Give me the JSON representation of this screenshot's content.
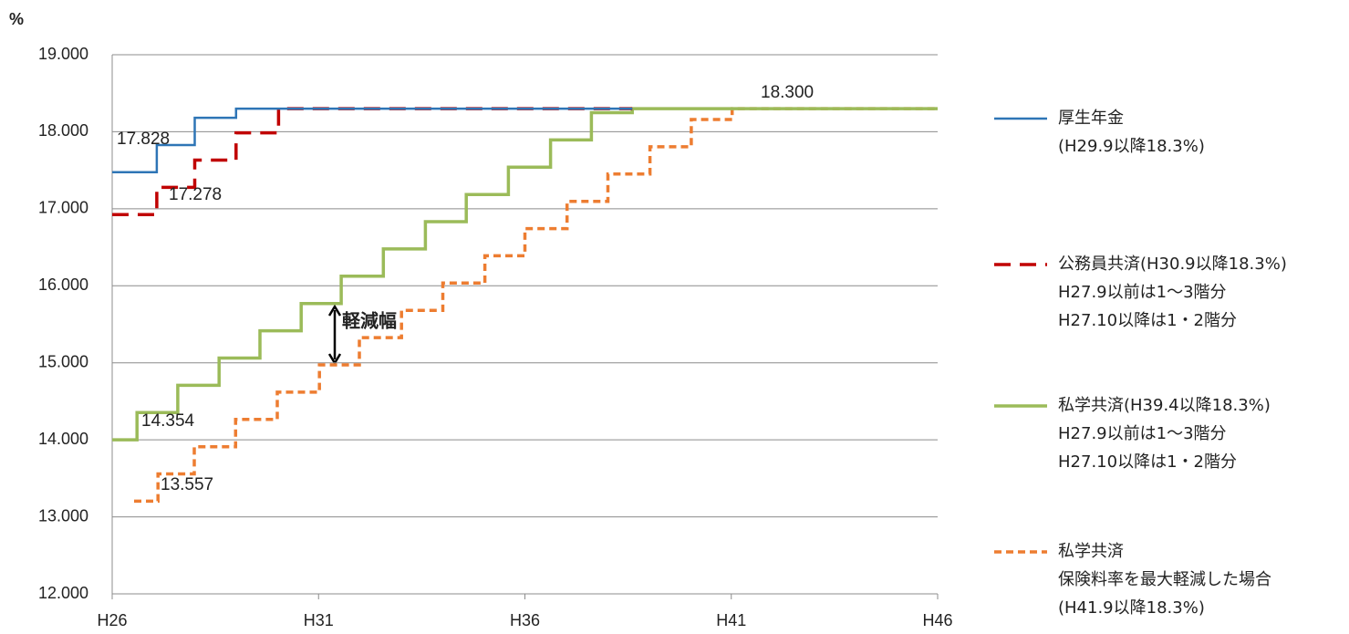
{
  "chart_data": {
    "type": "line",
    "step": "post",
    "unit_label": "%",
    "xlim": [
      26,
      46
    ],
    "xticks": [
      {
        "value": 26,
        "label": "H26"
      },
      {
        "value": 31,
        "label": "H31"
      },
      {
        "value": 36,
        "label": "H36"
      },
      {
        "value": 41,
        "label": "H41"
      },
      {
        "value": 46,
        "label": "H46"
      }
    ],
    "ylim": [
      12,
      19
    ],
    "yticks": [
      {
        "value": 12,
        "label": "12.000"
      },
      {
        "value": 13,
        "label": "13.000"
      },
      {
        "value": 14,
        "label": "14.000"
      },
      {
        "value": 15,
        "label": "15.000"
      },
      {
        "value": 16,
        "label": "16.000"
      },
      {
        "value": 17,
        "label": "17.000"
      },
      {
        "value": 18,
        "label": "18.000"
      },
      {
        "value": 19,
        "label": "19.000"
      }
    ],
    "grid": true,
    "series": [
      {
        "name": "厚生年金",
        "legend_extra": [
          "(H29.9以降18.3%)"
        ],
        "color": "#2e75b6",
        "dash": "solid",
        "x": [
          26,
          27.08,
          28.0,
          29.0,
          38.6
        ],
        "values": [
          17.474,
          17.828,
          18.182,
          18.3,
          18.3
        ]
      },
      {
        "name": "公務員共済(H30.9以降18.3%)",
        "legend_extra": [
          "H27.9以前は1～3階分",
          "H27.10以降は1・2階分"
        ],
        "color": "#c00000",
        "dash": "dashed",
        "x": [
          26,
          27.08,
          28.0,
          29.0,
          30.03,
          38.6
        ],
        "values": [
          16.924,
          17.278,
          17.632,
          17.986,
          18.3,
          18.3
        ]
      },
      {
        "name": "私学共済(H39.4以降18.3%)",
        "legend_extra": [
          "H27.9以前は1～3階分",
          "H27.10以降は1・2階分"
        ],
        "color": "#9bbb59",
        "dash": "solid",
        "x": [
          26,
          26.6,
          27.59,
          28.59,
          29.58,
          30.58,
          31.55,
          32.57,
          33.59,
          34.58,
          35.6,
          36.62,
          37.61,
          38.6,
          46
        ],
        "values": [
          14.0,
          14.354,
          14.708,
          15.062,
          15.416,
          15.77,
          16.124,
          16.478,
          16.832,
          17.186,
          17.54,
          17.894,
          18.248,
          18.3,
          18.3
        ]
      },
      {
        "name": "私学共済",
        "legend_extra": [
          "保険料率を最大軽減した場合",
          "(H41.9以降18.3%)"
        ],
        "color": "#ed7d31",
        "dash": "dotted",
        "x": [
          26.53,
          27.11,
          27.99,
          28.99,
          30.0,
          31.02,
          31.99,
          33.01,
          34.01,
          35.03,
          36.0,
          37.02,
          38.01,
          39.03,
          40.03,
          41.02,
          46
        ],
        "values": [
          13.203,
          13.557,
          13.911,
          14.265,
          14.619,
          14.973,
          15.327,
          15.681,
          16.035,
          16.389,
          16.743,
          17.097,
          17.451,
          17.805,
          18.159,
          18.3,
          18.3
        ]
      }
    ],
    "annotations": [
      "17.828",
      "17.278",
      "14.354",
      "13.557",
      "18.300"
    ],
    "arrow_label": "軽減幅"
  }
}
